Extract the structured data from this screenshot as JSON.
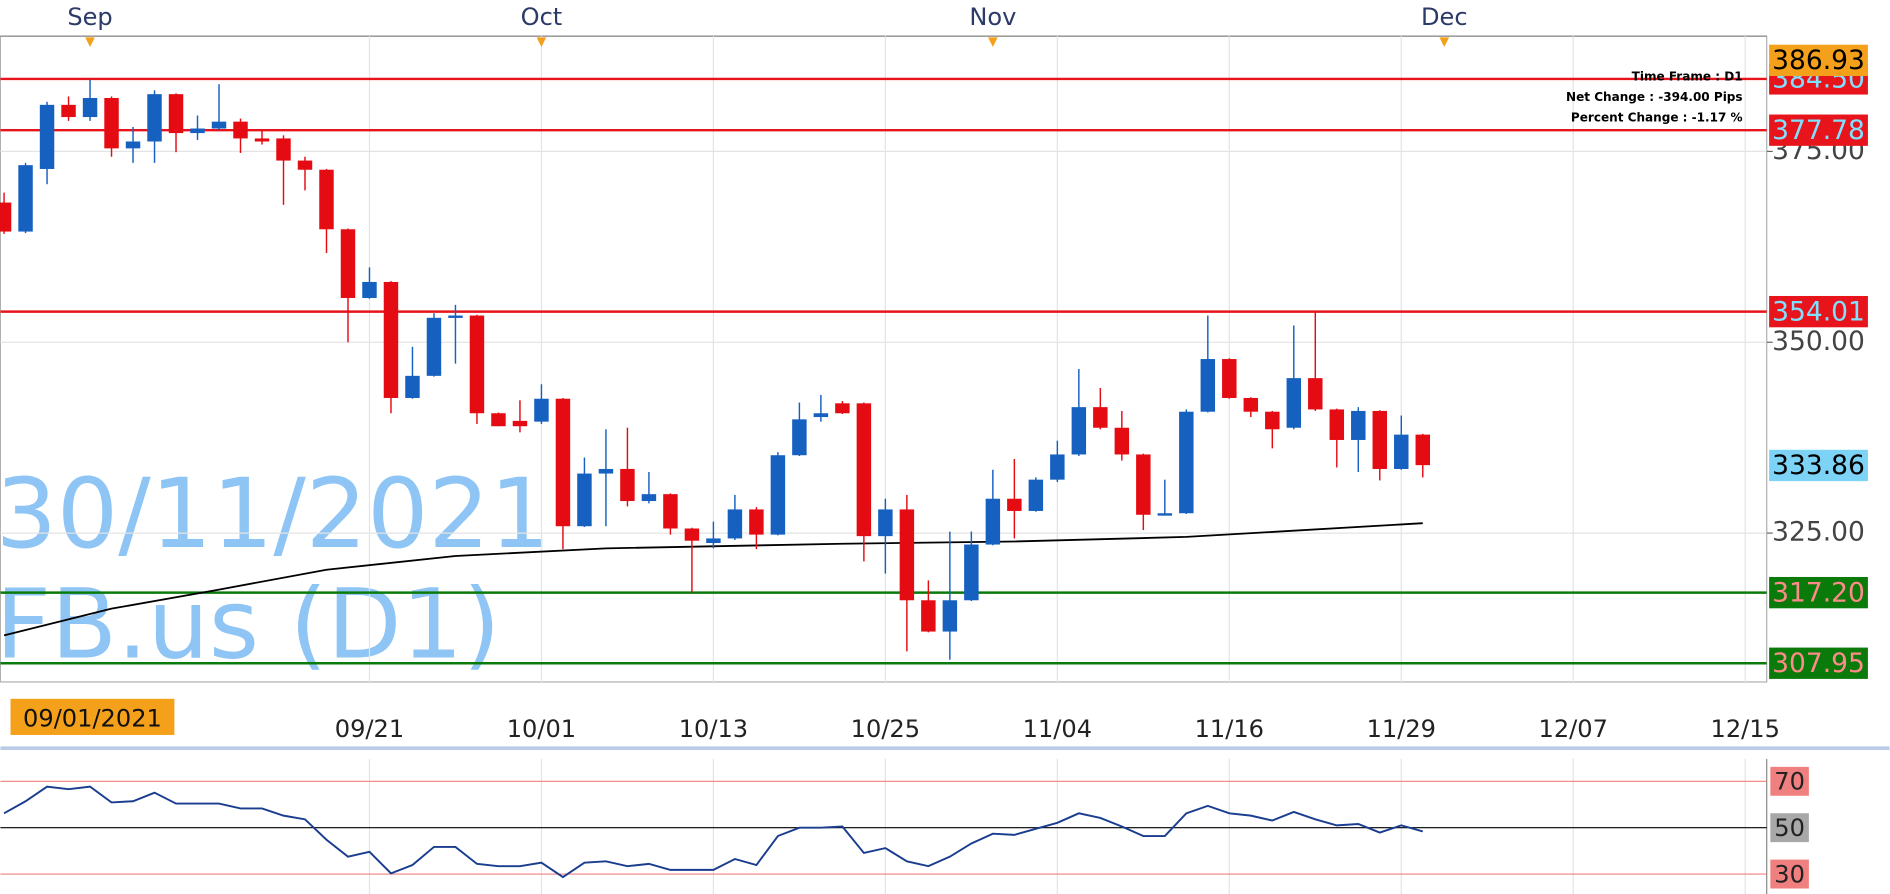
{
  "chart_data": [
    {
      "type": "candlestick",
      "watermark": [
        "30/11/2021",
        "FB.us (D1)"
      ],
      "info_lines": [
        "Time Frame : D1",
        "Net Change : -394.00 Pips",
        "Percent Change : -1.17 %"
      ],
      "x": [
        0,
        1,
        2,
        3,
        4,
        5,
        6,
        7,
        8,
        9,
        10,
        11,
        12,
        13,
        14,
        15,
        16,
        17,
        18,
        19,
        20,
        21,
        22,
        23,
        24,
        25,
        26,
        27,
        28,
        29,
        30,
        31,
        32,
        33,
        34,
        35,
        36,
        37,
        38,
        39,
        40,
        41,
        42,
        43,
        44,
        45,
        46,
        47,
        48,
        49,
        50,
        51,
        52,
        53,
        54,
        55,
        56,
        57,
        58,
        59,
        60,
        61,
        62,
        63,
        64,
        65,
        66
      ],
      "open": [
        368.3,
        364.5,
        372.7,
        381.1,
        379.5,
        382.0,
        375.4,
        376.3,
        382.5,
        377.4,
        378.0,
        378.9,
        376.7,
        376.7,
        373.8,
        372.6,
        364.8,
        355.8,
        357.9,
        342.7,
        345.6,
        353.2,
        353.5,
        340.7,
        339.7,
        339.6,
        342.6,
        325.9,
        332.8,
        333.4,
        329.2,
        330.1,
        325.6,
        323.7,
        324.3,
        328.1,
        324.8,
        335.2,
        340.2,
        342.0,
        342.0,
        324.6,
        328.1,
        316.2,
        312.1,
        316.2,
        323.5,
        329.5,
        327.9,
        332.0,
        335.3,
        341.5,
        338.8,
        335.3,
        327.4,
        327.6,
        340.9,
        347.8,
        342.7,
        340.9,
        338.8,
        345.3,
        341.2,
        337.2,
        341.0,
        333.4,
        337.9
      ],
      "high": [
        369.6,
        373.5,
        381.5,
        382.2,
        384.4,
        382.2,
        378.2,
        383.0,
        382.6,
        379.7,
        383.8,
        379.3,
        377.8,
        377.1,
        374.3,
        372.7,
        364.9,
        359.8,
        358.0,
        349.4,
        353.8,
        354.9,
        353.6,
        340.8,
        342.4,
        344.5,
        342.7,
        334.9,
        338.6,
        338.8,
        333.0,
        330.2,
        325.7,
        326.5,
        330.0,
        328.4,
        335.6,
        342.1,
        343.1,
        342.3,
        342.1,
        329.5,
        330.0,
        318.8,
        325.2,
        325.2,
        333.3,
        334.7,
        332.3,
        337.1,
        346.5,
        344.0,
        341.0,
        335.4,
        332.0,
        341.2,
        353.5,
        347.9,
        342.8,
        341.0,
        352.2,
        353.9,
        341.3,
        341.5,
        341.1,
        340.4,
        338.0
      ],
      "low": [
        364.2,
        364.3,
        370.7,
        379.0,
        379.0,
        374.3,
        373.5,
        373.5,
        374.9,
        376.5,
        377.8,
        374.8,
        375.9,
        368.0,
        369.9,
        361.7,
        350.0,
        355.7,
        340.7,
        342.6,
        345.5,
        347.2,
        339.3,
        339.0,
        338.2,
        339.3,
        322.9,
        325.8,
        325.9,
        328.5,
        328.9,
        324.8,
        317.2,
        323.0,
        324.1,
        322.9,
        324.7,
        335.1,
        339.6,
        340.6,
        321.3,
        319.7,
        309.5,
        312.0,
        308.4,
        316.1,
        323.4,
        324.3,
        327.8,
        331.7,
        335.1,
        338.6,
        334.5,
        325.4,
        327.3,
        327.5,
        340.8,
        342.6,
        340.2,
        336.1,
        338.6,
        341.0,
        333.6,
        333.0,
        331.9,
        333.3,
        332.3
      ],
      "close": [
        364.5,
        373.2,
        381.1,
        379.5,
        382.0,
        375.4,
        376.3,
        382.5,
        377.4,
        378.0,
        378.9,
        376.7,
        376.3,
        373.8,
        372.6,
        364.8,
        355.8,
        357.9,
        342.7,
        345.6,
        353.2,
        353.5,
        340.7,
        339.0,
        339.0,
        342.6,
        325.9,
        332.8,
        333.4,
        329.2,
        330.1,
        325.6,
        324.0,
        324.3,
        328.1,
        324.8,
        335.2,
        339.9,
        340.7,
        340.7,
        324.6,
        328.1,
        316.2,
        312.1,
        316.2,
        323.5,
        329.5,
        327.9,
        332.0,
        335.3,
        341.5,
        338.8,
        335.3,
        327.4,
        327.6,
        340.9,
        347.8,
        342.7,
        340.9,
        338.6,
        345.3,
        341.2,
        337.2,
        341.0,
        333.4,
        337.9,
        333.9
      ],
      "up_color": "#1660c0",
      "down_color": "#e50b12",
      "ma": {
        "x": [
          0,
          5,
          10,
          15,
          21,
          28,
          39,
          47,
          55,
          66
        ],
        "values": [
          311.6,
          315.1,
          317.6,
          320.2,
          322.0,
          323.0,
          323.6,
          323.9,
          324.5,
          326.3
        ],
        "color": "#000000"
      },
      "xlim": [
        -0.17,
        82
      ],
      "xticks": [
        {
          "value": 17,
          "label": "09/21"
        },
        {
          "value": 25,
          "label": "10/01"
        },
        {
          "value": 33,
          "label": "10/13"
        },
        {
          "value": 41,
          "label": "10/25"
        },
        {
          "value": 49,
          "label": "11/04"
        },
        {
          "value": 57,
          "label": "11/16"
        },
        {
          "value": 65,
          "label": "11/29"
        },
        {
          "value": 73,
          "label": "12/07"
        },
        {
          "value": 81,
          "label": "12/15"
        }
      ],
      "month_ticks": [
        {
          "value": 4,
          "label": "Sep"
        },
        {
          "value": 25,
          "label": "Oct"
        },
        {
          "value": 46,
          "label": "Nov"
        },
        {
          "value": 67,
          "label": "Dec"
        }
      ],
      "crosshair_label": {
        "value": 4,
        "label": "09/01/2021"
      },
      "ylim": [
        305.5,
        390.1
      ],
      "yticks": [
        {
          "value": 375,
          "label": "375.00"
        },
        {
          "value": 350,
          "label": "350.00"
        },
        {
          "value": 325,
          "label": "325.00"
        }
      ],
      "levels": [
        {
          "value": 386.93,
          "label": "386.93",
          "fill": "#f5a01a",
          "text_color": "#000000",
          "line": null
        },
        {
          "value": 384.5,
          "label": "384.50",
          "fill": "#e8141c",
          "text_color": "#7fe0ff",
          "line": "#e8141c"
        },
        {
          "value": 377.78,
          "label": "377.78",
          "fill": "#e8141c",
          "text_color": "#7fe0ff",
          "line": "#e8141c"
        },
        {
          "value": 354.01,
          "label": "354.01",
          "fill": "#e8141c",
          "text_color": "#7fe0ff",
          "line": "#e8141c"
        },
        {
          "value": 333.86,
          "label": "333.86",
          "fill": "#7dd3f5",
          "text_color": "#000000",
          "line": null
        },
        {
          "value": 317.2,
          "label": "317.20",
          "fill": "#0a7a0a",
          "text_color": "#ff8a8a",
          "line": "#0a7a0a"
        },
        {
          "value": 307.95,
          "label": "307.95",
          "fill": "#0a7a0a",
          "text_color": "#ff8a8a",
          "line": "#0a7a0a"
        }
      ]
    },
    {
      "type": "line",
      "x": [
        0,
        1,
        2,
        3,
        4,
        5,
        6,
        7,
        8,
        9,
        10,
        11,
        12,
        13,
        14,
        15,
        16,
        17,
        18,
        19,
        20,
        21,
        22,
        23,
        24,
        25,
        26,
        27,
        28,
        29,
        30,
        31,
        32,
        33,
        34,
        35,
        36,
        37,
        38,
        39,
        40,
        41,
        42,
        43,
        44,
        45,
        46,
        47,
        48,
        49,
        50,
        51,
        52,
        53,
        54,
        55,
        56,
        57,
        58,
        59,
        60,
        61,
        62,
        63,
        64,
        65,
        66
      ],
      "values": [
        56.2,
        61.4,
        67.7,
        66.6,
        67.7,
        60.9,
        61.4,
        65.1,
        60.4,
        60.4,
        60.4,
        58.3,
        58.3,
        55.2,
        53.6,
        44.8,
        37.5,
        39.6,
        30.3,
        33.9,
        41.7,
        41.7,
        34.4,
        33.4,
        33.4,
        34.9,
        28.7,
        34.9,
        35.5,
        33.4,
        34.4,
        31.8,
        31.8,
        31.8,
        36.5,
        33.9,
        46.4,
        50,
        50,
        50.5,
        39.1,
        41.2,
        35.5,
        33.4,
        37.5,
        43.2,
        47.4,
        46.9,
        49.5,
        52.1,
        56.2,
        54.2,
        50.5,
        46.4,
        46.4,
        56.2,
        59.4,
        56.2,
        55.2,
        53.1,
        56.8,
        53.6,
        51.0,
        51.6,
        47.9,
        51.0,
        48.4
      ],
      "color": "#1a3d8f",
      "xlim": [
        -0.17,
        82
      ],
      "ylim": [
        21.4,
        79.6
      ],
      "yticks": [
        {
          "value": 70,
          "fill": "#f08080",
          "line": "#f08080"
        },
        {
          "value": 50,
          "fill": "#a8a8a8",
          "line": "#000000"
        },
        {
          "value": 30,
          "fill": "#f08080",
          "line": "#f08080"
        }
      ]
    }
  ]
}
